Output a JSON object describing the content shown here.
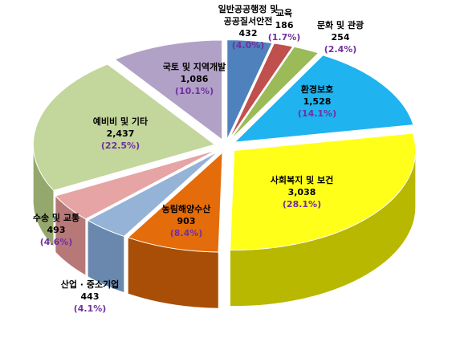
{
  "chart_data": {
    "type": "pie",
    "style": "3d-exploded",
    "slices": [
      {
        "label": "일반공공행정 및 공공질서안전",
        "lines": [
          "일반공공행정 및",
          "공공질서안전"
        ],
        "value": 432,
        "value_label": "432",
        "percent": "(4.0%)",
        "color": "#4f81bd",
        "side": "#36628f"
      },
      {
        "label": "교육",
        "lines": [
          "교육"
        ],
        "value": 186,
        "value_label": "186",
        "percent": "(1.7%)",
        "color": "#c0504d",
        "side": "#8e3531"
      },
      {
        "label": "문화 및 관광",
        "lines": [
          "문화 및 관광"
        ],
        "value": 254,
        "value_label": "254",
        "percent": "(2.4%)",
        "color": "#9bbb59",
        "side": "#6f8a3c"
      },
      {
        "label": "환경보호",
        "lines": [
          "환경보호"
        ],
        "value": 1528,
        "value_label": "1,528",
        "percent": "(14.1%)",
        "color": "#1fb3ef",
        "side": "#1484b2"
      },
      {
        "label": "사회복지 및 보건",
        "lines": [
          "사회복지 및 보건"
        ],
        "value": 3038,
        "value_label": "3,038",
        "percent": "(28.1%)",
        "color": "#ffff1a",
        "side": "#b8b800"
      },
      {
        "label": "농림해양수산",
        "lines": [
          "농림해양수산"
        ],
        "value": 903,
        "value_label": "903",
        "percent": "(8.4%)",
        "color": "#e46c0a",
        "side": "#a84e06"
      },
      {
        "label": "산업 · 중소기업",
        "lines": [
          "산업 · 중소기업"
        ],
        "value": 443,
        "value_label": "443",
        "percent": "(4.1%)",
        "color": "#95b3d7",
        "side": "#6a88ad"
      },
      {
        "label": "수송 및 교통",
        "lines": [
          "수송 및 교통"
        ],
        "value": 493,
        "value_label": "493",
        "percent": "(4.6%)",
        "color": "#e6a4a4",
        "side": "#b77878"
      },
      {
        "label": "예비비 및 기타",
        "lines": [
          "예비비 및 기타"
        ],
        "value": 2437,
        "value_label": "2,437",
        "percent": "(22.5%)",
        "color": "#c3d69b",
        "side": "#94a86d"
      },
      {
        "label": "국토 및 지역개발",
        "lines": [
          "국토 및 지역개발"
        ],
        "value": 1086,
        "value_label": "1,086",
        "percent": "(10.1%)",
        "color": "#b2a1c7",
        "side": "#82729a"
      }
    ]
  }
}
